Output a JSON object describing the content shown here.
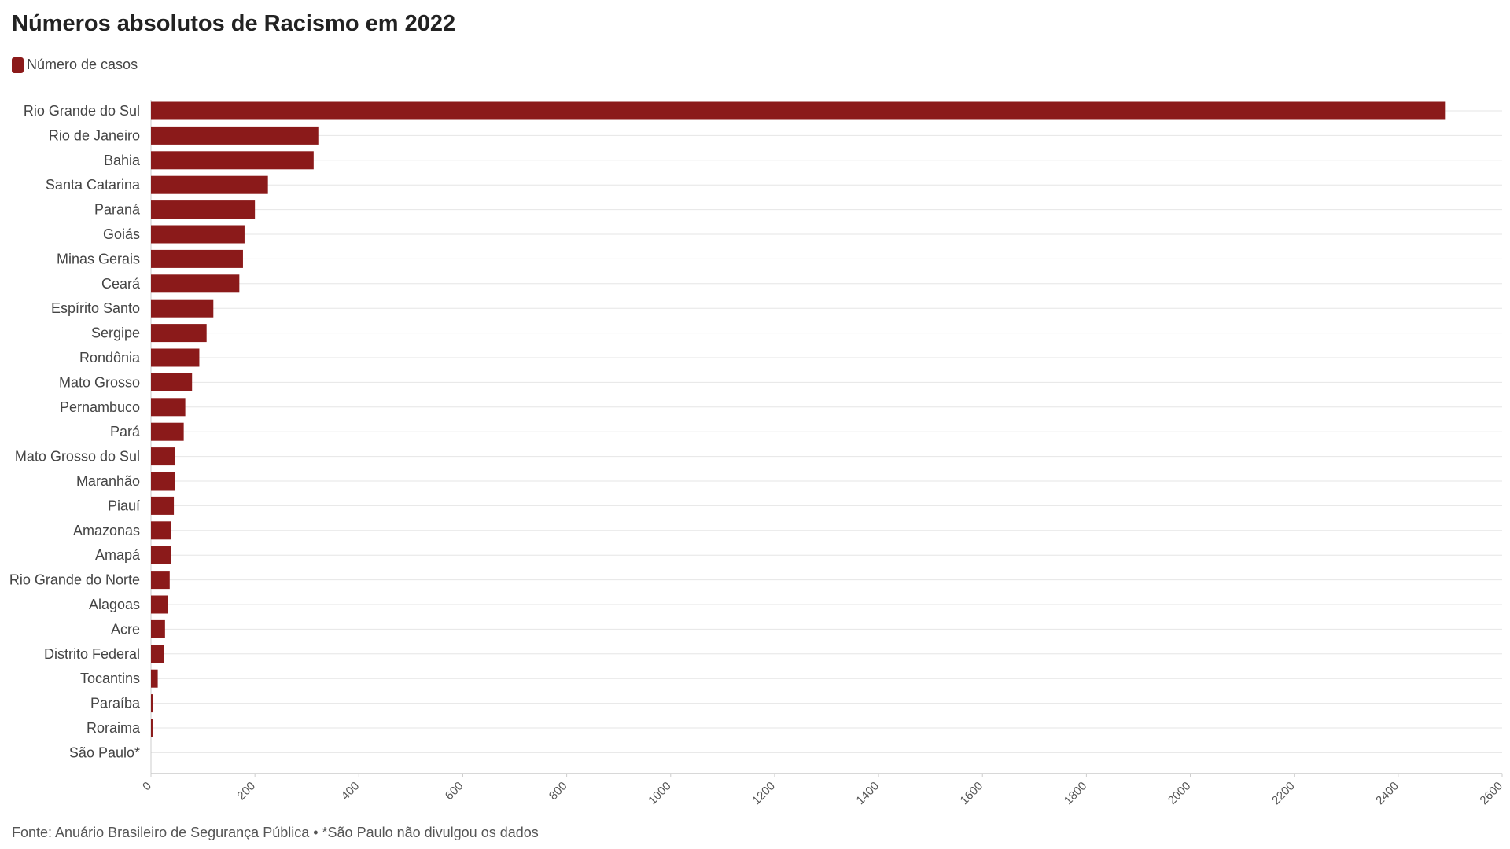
{
  "colors": {
    "bar": "#8b1a1a",
    "grid": "#e6e6e6",
    "axis": "#cccccc"
  },
  "header": {
    "title": "Números absolutos de Racismo em 2022"
  },
  "footer": {
    "source": "Fonte: Anuário Brasileiro de Segurança Pública • *São Paulo não divulgou os dados"
  },
  "chart_data": {
    "type": "bar",
    "orientation": "horizontal",
    "title": "Números absolutos de Racismo em 2022",
    "legend": {
      "placement": "top-left",
      "entries": [
        "Número de casos"
      ]
    },
    "categories": [
      "Rio Grande do Sul",
      "Rio de Janeiro",
      "Bahia",
      "Santa Catarina",
      "Paraná",
      "Goiás",
      "Minas Gerais",
      "Ceará",
      "Espírito Santo",
      "Sergipe",
      "Rondônia",
      "Mato Grosso",
      "Pernambuco",
      "Pará",
      "Mato Grosso do Sul",
      "Maranhão",
      "Piauí",
      "Amazonas",
      "Amapá",
      "Rio Grande do Norte",
      "Alagoas",
      "Acre",
      "Distrito Federal",
      "Tocantins",
      "Paraíba",
      "Roraima",
      "São Paulo*"
    ],
    "series": [
      {
        "name": "Número de casos",
        "values": [
          2490,
          322,
          313,
          225,
          200,
          180,
          177,
          170,
          120,
          107,
          93,
          79,
          66,
          63,
          46,
          46,
          44,
          39,
          39,
          36,
          32,
          27,
          25,
          13,
          4,
          3,
          0
        ]
      }
    ],
    "xlim": [
      0,
      2600
    ],
    "xticks": [
      0,
      200,
      400,
      600,
      800,
      1000,
      1200,
      1400,
      1600,
      1800,
      2000,
      2200,
      2400,
      2600
    ],
    "grid": true
  }
}
